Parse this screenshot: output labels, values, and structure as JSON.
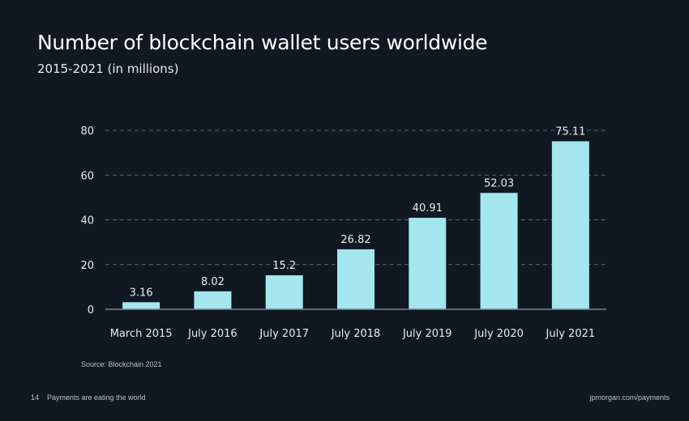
{
  "chart_data": {
    "type": "bar",
    "title": "Number of blockchain wallet users worldwide",
    "subtitle": "2015-2021 (in millions)",
    "categories": [
      "March 2015",
      "July 2016",
      "July 2017",
      "July 2018",
      "July 2019",
      "July 2020",
      "July 2021"
    ],
    "values": [
      3.16,
      8.02,
      15.2,
      26.82,
      40.91,
      52.03,
      75.11
    ],
    "data_labels": [
      "3.16",
      "8.02",
      "15.2",
      "26.82",
      "40.91",
      "52.03",
      "75.11"
    ],
    "yticks": [
      0,
      20,
      40,
      60,
      80
    ],
    "ylim": [
      0,
      80
    ],
    "grid": true,
    "bar_color": "#a3e6ee",
    "source": "Source: Blockchain 2021"
  },
  "footer": {
    "page": "14",
    "section": "Payments are eating the world",
    "url": "jpmorgan.com/payments"
  }
}
